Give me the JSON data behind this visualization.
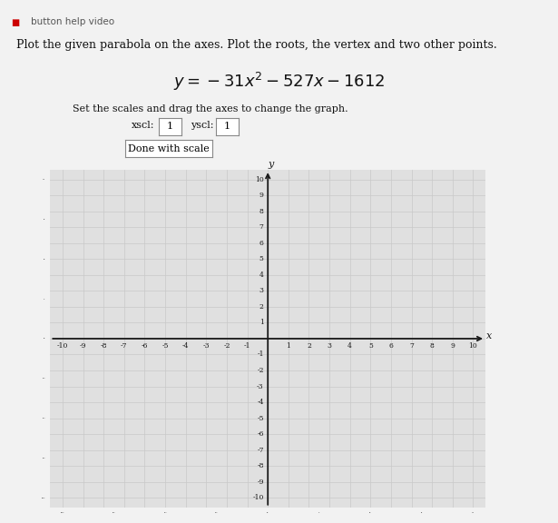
{
  "title_line1": "Plot the given parabola on the axes. Plot the roots, the vertex and two other points.",
  "equation_latex": "$y = -31x^2 - 527x - 1612$",
  "subtitle": "Set the scales and drag the axes to change the graph.",
  "xscl_value": "1",
  "yscl_value": "1",
  "button_text": "Done with scale",
  "xmin": -10,
  "xmax": 10,
  "ymin": -10,
  "ymax": 10,
  "grid_color": "#c8c8c8",
  "axis_color": "#1a1a1a",
  "background_color": "#f2f2f2",
  "plot_bg_color": "#e0e0e0",
  "text_color": "#111111",
  "xlabel": "x",
  "ylabel": "y",
  "bullet_color": "#cc0000"
}
